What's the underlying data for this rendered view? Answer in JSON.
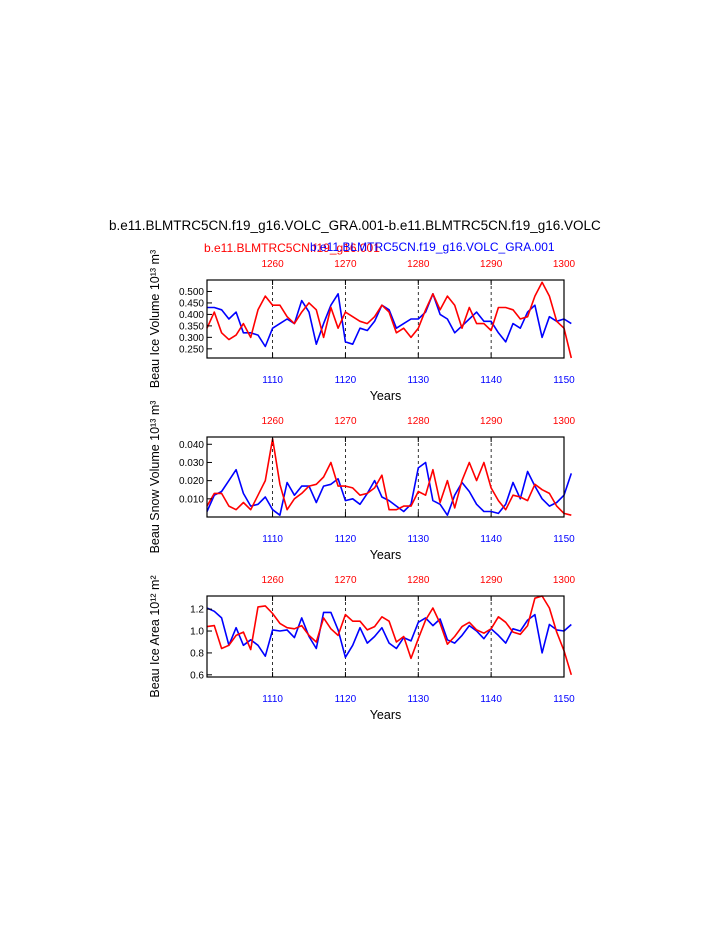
{
  "figure": {
    "title": "b.e11.BLMTRC5CN.f19_g16.VOLC_GRA.001-b.e11.BLMTRC5CN.f19_g16.VOLC",
    "legend_red": "b.e11.BLMTRC5CN.f19_g16.001",
    "legend_blue": "b.e11.BLMTRC5CN.f19_g16.VOLC_GRA.001",
    "colors": {
      "red": "#ff0000",
      "blue": "#0000ff",
      "axis": "#000000"
    }
  },
  "chart_data": [
    {
      "type": "line",
      "ylabel": "Beau Ice Volume 10¹³ m³",
      "xlabel": "Years",
      "ylim": [
        0.21,
        0.55
      ],
      "yticks": [
        "0.250",
        "0.300",
        "0.350",
        "0.400",
        "0.450",
        "0.500"
      ],
      "x_bottom": {
        "lim": [
          1101,
          1150
        ],
        "ticks": [
          1110,
          1120,
          1130,
          1140,
          1150
        ]
      },
      "x_top": {
        "lim": [
          1251,
          1300
        ],
        "ticks": [
          1260,
          1270,
          1280,
          1290,
          1300
        ]
      },
      "series": [
        {
          "color": "blue",
          "axis": "bottom",
          "values": [
            0.43,
            0.43,
            0.42,
            0.38,
            0.41,
            0.32,
            0.32,
            0.31,
            0.26,
            0.34,
            0.36,
            0.38,
            0.36,
            0.46,
            0.41,
            0.27,
            0.36,
            0.44,
            0.49,
            0.28,
            0.27,
            0.34,
            0.33,
            0.37,
            0.44,
            0.42,
            0.34,
            0.36,
            0.38,
            0.38,
            0.41,
            0.49,
            0.4,
            0.38,
            0.32,
            0.35,
            0.38,
            0.41,
            0.37,
            0.37,
            0.32,
            0.28,
            0.36,
            0.34,
            0.41,
            0.44,
            0.3,
            0.39,
            0.37,
            0.38,
            0.36
          ]
        },
        {
          "color": "red",
          "axis": "top",
          "values": [
            0.34,
            0.41,
            0.32,
            0.29,
            0.31,
            0.36,
            0.3,
            0.42,
            0.48,
            0.44,
            0.44,
            0.39,
            0.36,
            0.41,
            0.45,
            0.42,
            0.3,
            0.43,
            0.34,
            0.41,
            0.39,
            0.37,
            0.36,
            0.39,
            0.44,
            0.41,
            0.32,
            0.34,
            0.3,
            0.34,
            0.42,
            0.49,
            0.42,
            0.48,
            0.44,
            0.34,
            0.43,
            0.36,
            0.36,
            0.33,
            0.43,
            0.43,
            0.42,
            0.38,
            0.39,
            0.48,
            0.54,
            0.48,
            0.37,
            0.34,
            0.21
          ]
        }
      ]
    },
    {
      "type": "line",
      "ylabel": "Beau Snow Volume 10¹³ m³",
      "xlabel": "Years",
      "ylim": [
        0.0,
        0.044
      ],
      "yticks": [
        "0.010",
        "0.020",
        "0.030",
        "0.040"
      ],
      "x_bottom": {
        "lim": [
          1101,
          1150
        ],
        "ticks": [
          1110,
          1120,
          1130,
          1140,
          1150
        ]
      },
      "x_top": {
        "lim": [
          1251,
          1300
        ],
        "ticks": [
          1260,
          1270,
          1280,
          1290,
          1300
        ]
      },
      "series": [
        {
          "color": "blue",
          "axis": "bottom",
          "values": [
            0.003,
            0.012,
            0.014,
            0.02,
            0.026,
            0.013,
            0.006,
            0.007,
            0.011,
            0.004,
            0.001,
            0.019,
            0.012,
            0.017,
            0.017,
            0.008,
            0.017,
            0.018,
            0.021,
            0.009,
            0.01,
            0.007,
            0.013,
            0.02,
            0.011,
            0.009,
            0.006,
            0.003,
            0.007,
            0.027,
            0.03,
            0.009,
            0.007,
            0.001,
            0.012,
            0.019,
            0.014,
            0.007,
            0.003,
            0.003,
            0.002,
            0.007,
            0.019,
            0.01,
            0.025,
            0.017,
            0.01,
            0.006,
            0.008,
            0.012,
            0.024
          ]
        },
        {
          "color": "red",
          "axis": "top",
          "values": [
            0.006,
            0.013,
            0.013,
            0.006,
            0.004,
            0.008,
            0.004,
            0.012,
            0.02,
            0.043,
            0.018,
            0.004,
            0.01,
            0.013,
            0.017,
            0.018,
            0.022,
            0.03,
            0.017,
            0.017,
            0.016,
            0.012,
            0.013,
            0.016,
            0.023,
            0.004,
            0.004,
            0.006,
            0.006,
            0.014,
            0.012,
            0.026,
            0.008,
            0.02,
            0.005,
            0.02,
            0.03,
            0.02,
            0.03,
            0.016,
            0.009,
            0.004,
            0.012,
            0.011,
            0.009,
            0.018,
            0.015,
            0.013,
            0.006,
            0.002,
            0.001
          ]
        }
      ]
    },
    {
      "type": "line",
      "ylabel": "Beau Ice Area 10¹² m²",
      "xlabel": "Years",
      "ylim": [
        0.58,
        1.32
      ],
      "yticks": [
        "0.6",
        "0.8",
        "1.0",
        "1.2"
      ],
      "x_bottom": {
        "lim": [
          1101,
          1150
        ],
        "ticks": [
          1110,
          1120,
          1130,
          1140,
          1150
        ]
      },
      "x_top": {
        "lim": [
          1251,
          1300
        ],
        "ticks": [
          1260,
          1270,
          1280,
          1290,
          1300
        ]
      },
      "series": [
        {
          "color": "blue",
          "axis": "bottom",
          "values": [
            1.21,
            1.18,
            1.12,
            0.87,
            1.03,
            0.87,
            0.92,
            0.87,
            0.77,
            1.01,
            1.0,
            1.01,
            0.94,
            1.12,
            0.95,
            0.84,
            1.17,
            1.17,
            1.01,
            0.76,
            0.87,
            1.03,
            0.89,
            0.95,
            1.03,
            0.89,
            0.84,
            0.94,
            0.91,
            1.08,
            1.12,
            1.05,
            1.11,
            0.92,
            0.89,
            0.96,
            1.05,
            1.0,
            0.93,
            1.02,
            0.96,
            0.89,
            1.02,
            1.0,
            1.1,
            1.15,
            0.8,
            1.06,
            1.01,
            1.0,
            1.06
          ]
        },
        {
          "color": "red",
          "axis": "top",
          "values": [
            1.04,
            1.05,
            0.84,
            0.87,
            0.96,
            0.99,
            0.83,
            1.22,
            1.23,
            1.16,
            1.07,
            1.03,
            1.02,
            1.05,
            0.96,
            0.9,
            1.12,
            1.02,
            0.96,
            1.15,
            1.09,
            1.09,
            1.01,
            1.04,
            1.13,
            1.09,
            0.9,
            0.95,
            0.75,
            0.93,
            1.1,
            1.21,
            1.07,
            0.88,
            0.95,
            1.04,
            1.08,
            1.01,
            0.98,
            1.02,
            1.13,
            1.08,
            0.99,
            0.97,
            1.05,
            1.3,
            1.32,
            1.21,
            0.99,
            0.82,
            0.6
          ]
        }
      ]
    }
  ]
}
